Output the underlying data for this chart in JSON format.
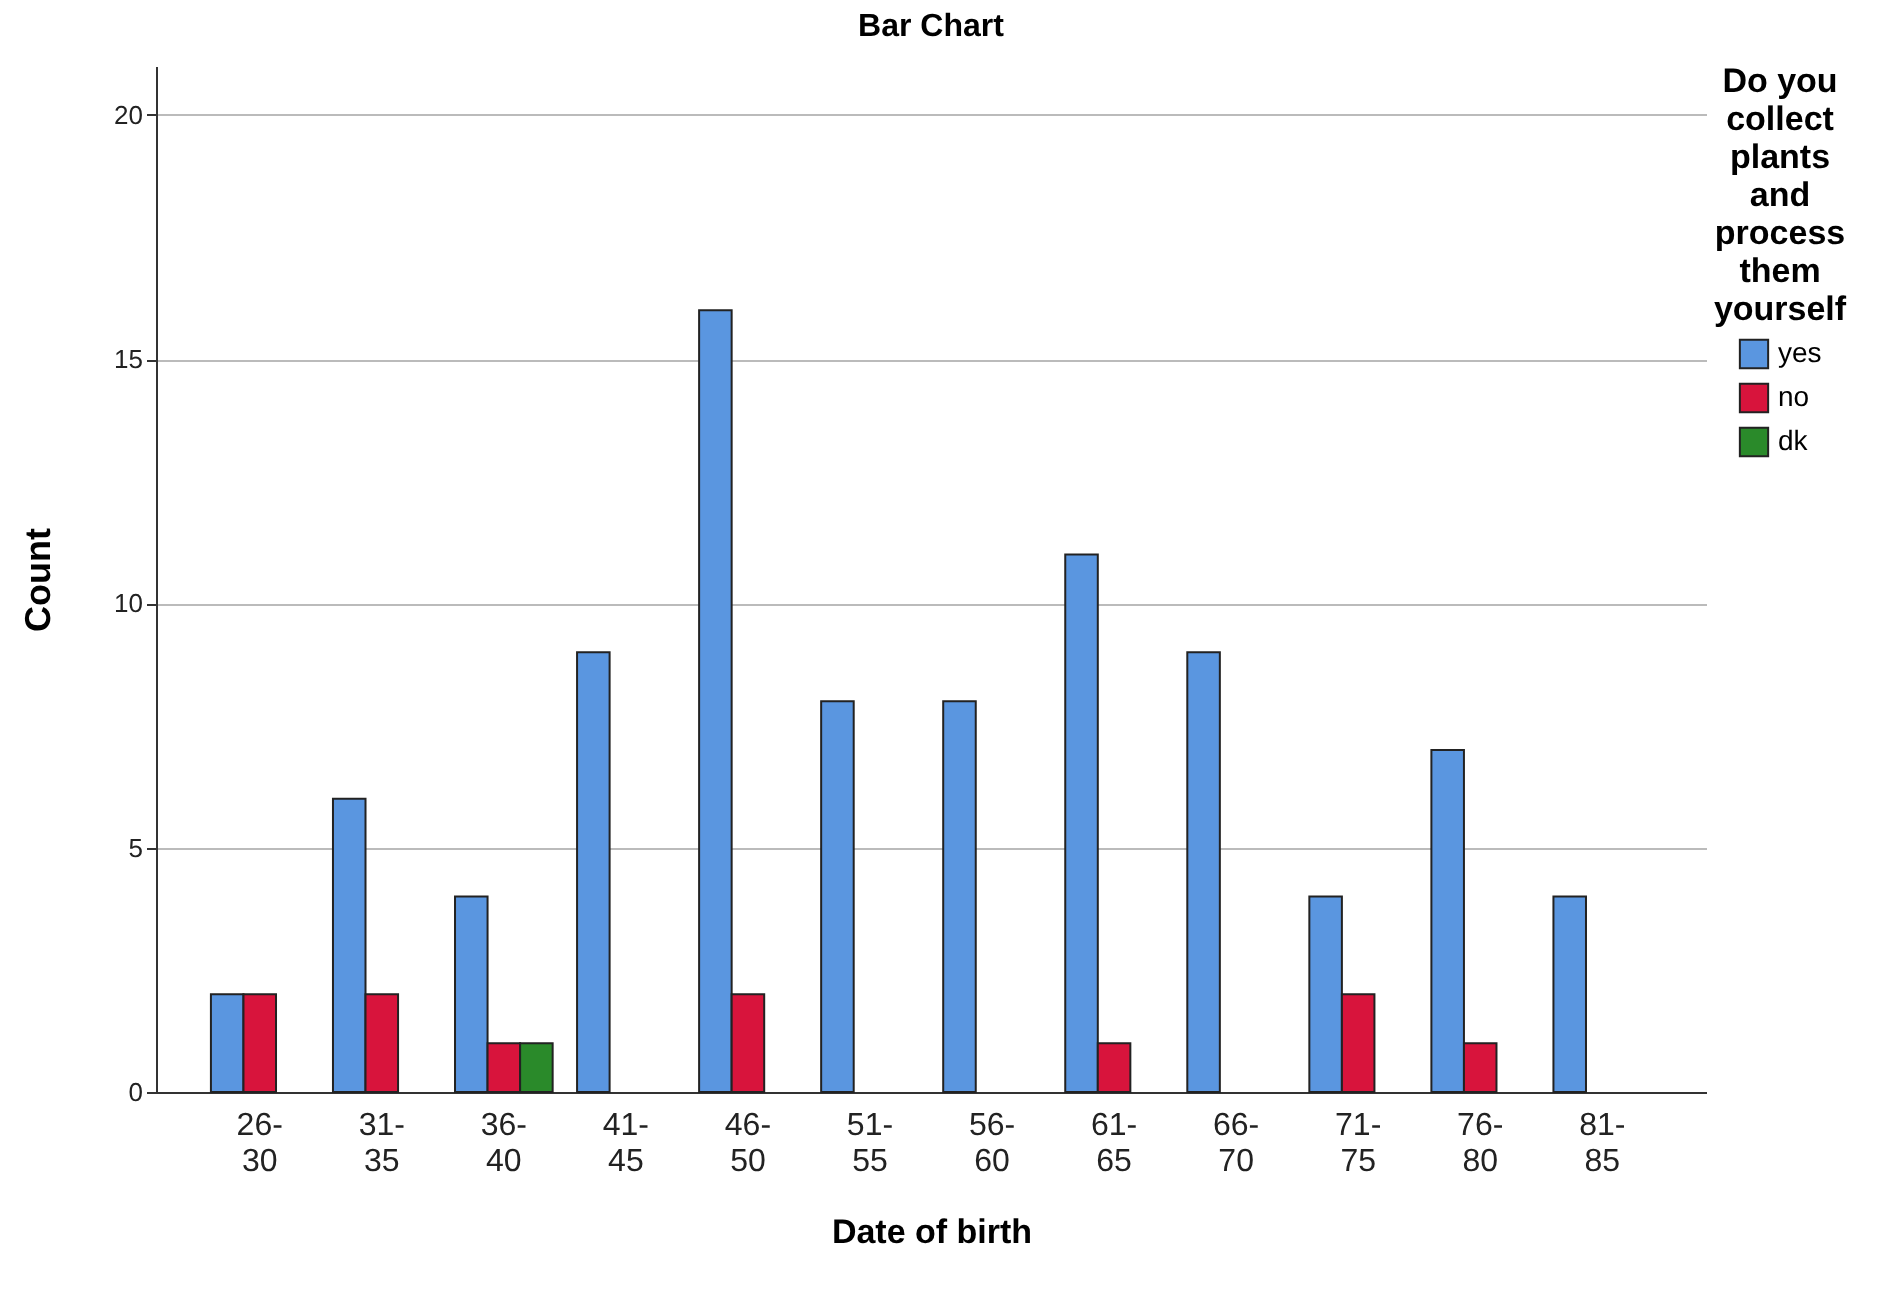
{
  "chart_data": {
    "type": "bar",
    "title": "Bar Chart",
    "xlabel": "Date of birth",
    "ylabel": "Count",
    "legend_title": "Do you collect plants and process them yourself",
    "categories": [
      "26-30",
      "31-35",
      "36-40",
      "41-45",
      "46-50",
      "51-55",
      "56-60",
      "61-65",
      "66-70",
      "71-75",
      "76-80",
      "81-85"
    ],
    "series": [
      {
        "name": "yes",
        "color": "#5a96e0",
        "values": [
          2,
          6,
          4,
          9,
          16,
          8,
          8,
          11,
          9,
          4,
          7,
          4
        ]
      },
      {
        "name": "no",
        "color": "#d8143c",
        "values": [
          2,
          2,
          1,
          null,
          2,
          null,
          null,
          1,
          null,
          2,
          1,
          null
        ]
      },
      {
        "name": "dk",
        "color": "#2a8a2a",
        "values": [
          null,
          null,
          1,
          null,
          null,
          null,
          null,
          null,
          null,
          null,
          null,
          null
        ]
      }
    ],
    "ylim": [
      0,
      21
    ],
    "yticks": [
      0,
      5,
      10,
      15,
      20
    ],
    "grid": "y",
    "legend": "top right"
  }
}
